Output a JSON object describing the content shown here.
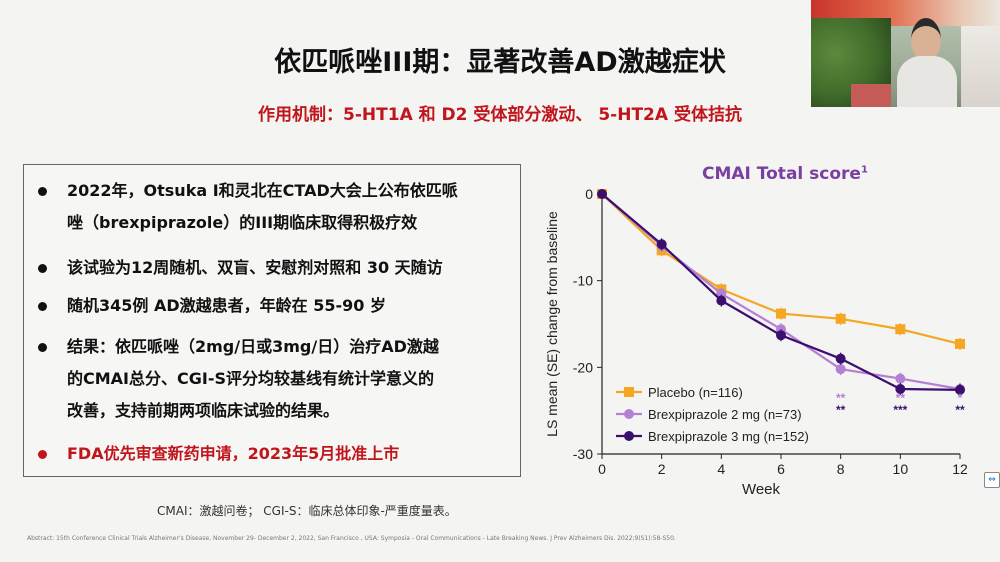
{
  "slide": {
    "title": "依匹哌唑III期：显著改善AD激越症状",
    "subtitle": "作用机制：5-HT1A 和 D2 受体部分激动、 5-HT2A 受体拮抗",
    "bullets": [
      {
        "text": "2022年，Otsuka I和灵北在CTAD大会上公布依匹哌唑（brexpiprazole）的III期临床取得积极疗效",
        "lines": [
          "2022年，Otsuka I和灵北在CTAD大会上公布依匹哌",
          "唑（brexpiprazole）的III期临床取得积极疗效"
        ]
      },
      {
        "lines": [
          "该试验为12周随机、双盲、安慰剂对照和 30 天随访"
        ]
      },
      {
        "lines": [
          "随机345例 AD激越患者，年龄在 55-90 岁"
        ]
      },
      {
        "lines": [
          "结果：依匹哌唑（2mg/日或3mg/日）治疗AD激越",
          "的CMAI总分、CGI-S评分均较基线有统计学意义的",
          "改善，支持前期两项临床试验的结果。"
        ]
      },
      {
        "lines": [
          "FDA优先审查新药申请，2023年5月批准上市"
        ],
        "highlight": true
      }
    ],
    "footnote": "CMAI：激越问卷； CGI-S：临床总体印象-严重度量表。",
    "reference": "Abstract: 15th Conference Clinical Trials Alzheimer's Disease, November 29- December 2, 2022, San Francisco , USA: Symposia - Oral Communications - Late Breaking News. J Prev Alzheimers Dis. 2022;9(S1):58-S50."
  },
  "colors": {
    "title": "#111111",
    "accent_red": "#c0151b",
    "placebo": "#f5a623",
    "brex2": "#b57fd6",
    "brex3": "#3a0f6e",
    "chart_title": "#7b3fa1"
  },
  "chart_data": {
    "type": "line",
    "title": "CMAI Total score",
    "title_sup": "1",
    "xlabel": "Week",
    "ylabel": "LS mean (SE) change from baseline",
    "x": [
      0,
      2,
      4,
      6,
      8,
      10,
      12
    ],
    "xlim": [
      0,
      12
    ],
    "ylim": [
      -30,
      0
    ],
    "xticks": [
      0,
      2,
      4,
      6,
      8,
      10,
      12
    ],
    "yticks": [
      0,
      -10,
      -20,
      -30
    ],
    "grid": false,
    "legend_position": "bottom-left",
    "series": [
      {
        "name": "Placebo (n=116)",
        "values": [
          0,
          -6.5,
          -11,
          -13.8,
          -14.4,
          -15.6,
          -17.3
        ],
        "color": "#f5a623",
        "marker": "square"
      },
      {
        "name": "Brexpiprazole 2 mg (n=73)",
        "values": [
          0,
          -6,
          -11.5,
          -15.6,
          -20.2,
          -21.3,
          -22.5
        ],
        "color": "#b57fd6",
        "marker": "circle"
      },
      {
        "name": "Brexpiprazole 3 mg (n=152)",
        "values": [
          0,
          -5.8,
          -12.3,
          -16.3,
          -19,
          -22.5,
          -22.6
        ],
        "color": "#3a0f6e",
        "marker": "circle"
      }
    ],
    "annotations": [
      {
        "x": 8,
        "rows": [
          {
            "text": "**",
            "color": "#b57fd6"
          },
          {
            "text": "**",
            "color": "#3a0f6e"
          }
        ]
      },
      {
        "x": 10,
        "rows": [
          {
            "text": "**",
            "color": "#b57fd6"
          },
          {
            "text": "***",
            "color": "#3a0f6e"
          }
        ]
      },
      {
        "x": 12,
        "rows": [
          {
            "text": "*",
            "color": "#b57fd6"
          },
          {
            "text": "**",
            "color": "#3a0f6e"
          }
        ]
      }
    ]
  }
}
